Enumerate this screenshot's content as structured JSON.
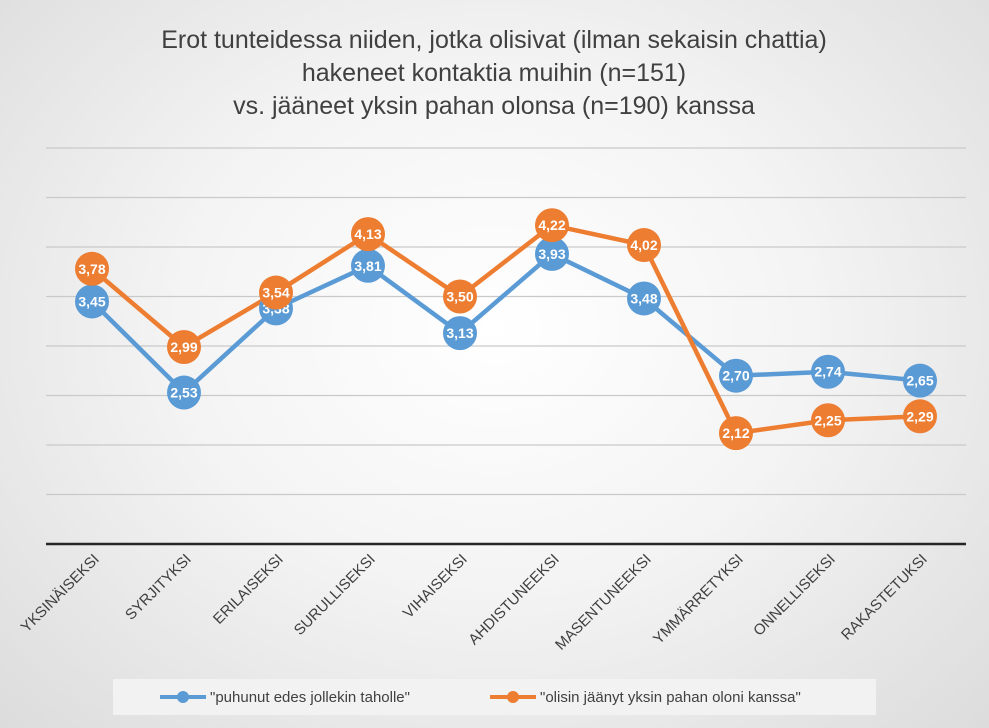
{
  "chart_data": {
    "type": "line",
    "title": [
      "Erot tunteidessa niiden, jotka olisivat (ilman sekaisin chattia)",
      "hakeneet kontaktia muihin (n=151)",
      "vs. jääneet yksin pahan olonsa (n=190) kanssa"
    ],
    "categories": [
      "YKSINÄISEKSI",
      "SYRJITYKSI",
      "ERILAISEKSI",
      "SURULLISEKSI",
      "VIHAISEKSI",
      "AHDISTUNEEKSI",
      "MASENTUNEEKSI",
      "YMMÄRRETYKSI",
      "ONNELLISEKSI",
      "RAKASTETUKSI"
    ],
    "series": [
      {
        "name": "\"puhunut edes jollekin taholle\"",
        "color": "#5b9bd5",
        "values": [
          3.45,
          2.53,
          3.38,
          3.81,
          3.13,
          3.93,
          3.48,
          2.7,
          2.74,
          2.65
        ],
        "labels": [
          "3,45",
          "2,53",
          "3,38",
          "3,81",
          "3,13",
          "3,93",
          "3,48",
          "2,70",
          "2,74",
          "2,65"
        ]
      },
      {
        "name": "\"olisin jäänyt yksin pahan oloni kanssa\"",
        "color": "#ed7d31",
        "values": [
          3.78,
          2.99,
          3.54,
          4.13,
          3.5,
          4.22,
          4.02,
          2.12,
          2.25,
          2.29
        ],
        "labels": [
          "3,78",
          "2,99",
          "3,54",
          "4,13",
          "3,50",
          "4,22",
          "4,02",
          "2,12",
          "2,25",
          "2,29"
        ]
      }
    ],
    "ylim": [
      1,
      5
    ],
    "grid": true,
    "legend": "bottom"
  }
}
